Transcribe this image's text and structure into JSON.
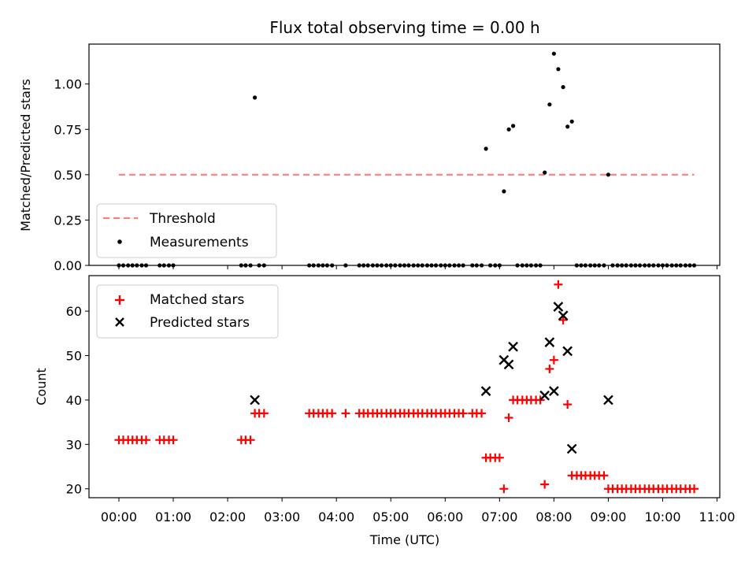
{
  "chart_data": [
    {
      "type": "scatter",
      "title": "Flux total observing time = 0.00 h",
      "xlabel": "",
      "ylabel": "Matched/Predicted stars",
      "xlim": [
        -0.55,
        11.05
      ],
      "ylim": [
        0,
        1.22
      ],
      "yticks": [
        0.0,
        0.25,
        0.5,
        0.75,
        1.0
      ],
      "ytick_labels": [
        "0.00",
        "0.25",
        "0.50",
        "0.75",
        "1.00"
      ],
      "legend_position": "lower-left",
      "series": [
        {
          "name": "Threshold",
          "style": "dashed-line",
          "color": "#ff7f7f",
          "x": [
            0.0,
            10.58
          ],
          "y": [
            0.5,
            0.5
          ]
        },
        {
          "name": "Measurements",
          "style": "dot",
          "color": "#000000",
          "x": [
            0.0,
            0.08,
            0.17,
            0.25,
            0.33,
            0.42,
            0.5,
            0.75,
            0.83,
            0.92,
            1.0,
            2.25,
            2.33,
            2.42,
            2.5,
            2.58,
            2.67,
            3.5,
            3.58,
            3.67,
            3.75,
            3.83,
            3.92,
            4.17,
            4.42,
            4.5,
            4.58,
            4.67,
            4.75,
            4.83,
            4.92,
            5.0,
            5.08,
            5.17,
            5.25,
            5.33,
            5.42,
            5.5,
            5.58,
            5.67,
            5.75,
            5.83,
            5.92,
            6.0,
            6.08,
            6.17,
            6.25,
            6.33,
            6.5,
            6.58,
            6.67,
            6.75,
            6.83,
            6.92,
            7.0,
            7.08,
            7.17,
            7.25,
            7.33,
            7.42,
            7.5,
            7.58,
            7.67,
            7.75,
            7.83,
            7.92,
            8.0,
            8.08,
            8.17,
            8.25,
            8.33,
            8.42,
            8.5,
            8.58,
            8.67,
            8.75,
            8.83,
            8.92,
            9.0,
            9.08,
            9.17,
            9.25,
            9.33,
            9.42,
            9.5,
            9.58,
            9.67,
            9.75,
            9.83,
            9.92,
            10.0,
            10.08,
            10.17,
            10.25,
            10.33,
            10.42,
            10.5,
            10.58
          ],
          "y": [
            0,
            0,
            0,
            0,
            0,
            0,
            0,
            0,
            0,
            0,
            0,
            0,
            0,
            0,
            0.925,
            0,
            0,
            0,
            0,
            0,
            0,
            0,
            0,
            0,
            0,
            0,
            0,
            0,
            0,
            0,
            0,
            0,
            0,
            0,
            0,
            0,
            0,
            0,
            0,
            0,
            0,
            0,
            0,
            0,
            0,
            0,
            0,
            0,
            0,
            0,
            0,
            0.643,
            0,
            0,
            0,
            0.408,
            0.75,
            0.769,
            0,
            0,
            0,
            0,
            0,
            0,
            0.512,
            0.887,
            1.167,
            1.082,
            0.983,
            0.765,
            0.793,
            0,
            0,
            0,
            0,
            0,
            0,
            0,
            0.5,
            0,
            0,
            0,
            0,
            0,
            0,
            0,
            0,
            0,
            0,
            0,
            0,
            0,
            0,
            0,
            0,
            0,
            0,
            0
          ]
        }
      ]
    },
    {
      "type": "scatter",
      "title": "",
      "xlabel": "Time (UTC)",
      "ylabel": "Count",
      "xlim": [
        -0.55,
        11.05
      ],
      "ylim": [
        18,
        68
      ],
      "yticks": [
        20,
        30,
        40,
        50,
        60
      ],
      "ytick_labels": [
        "20",
        "30",
        "40",
        "50",
        "60"
      ],
      "xticks": [
        0,
        1,
        2,
        3,
        4,
        5,
        6,
        7,
        8,
        9,
        10,
        11
      ],
      "xtick_labels": [
        "00:00",
        "01:00",
        "02:00",
        "03:00",
        "04:00",
        "05:00",
        "06:00",
        "07:00",
        "08:00",
        "09:00",
        "10:00",
        "11:00"
      ],
      "legend_position": "top-left",
      "series": [
        {
          "name": "Matched stars",
          "style": "plus",
          "color": "#ff0000",
          "x": [
            0.0,
            0.08,
            0.17,
            0.25,
            0.33,
            0.42,
            0.5,
            0.75,
            0.83,
            0.92,
            1.0,
            2.25,
            2.33,
            2.42,
            2.5,
            2.58,
            2.67,
            3.5,
            3.58,
            3.67,
            3.75,
            3.83,
            3.92,
            4.17,
            4.42,
            4.5,
            4.58,
            4.67,
            4.75,
            4.83,
            4.92,
            5.0,
            5.08,
            5.17,
            5.25,
            5.33,
            5.42,
            5.5,
            5.58,
            5.67,
            5.75,
            5.83,
            5.92,
            6.0,
            6.08,
            6.17,
            6.25,
            6.33,
            6.5,
            6.58,
            6.67,
            6.75,
            6.83,
            6.92,
            7.0,
            7.08,
            7.17,
            7.25,
            7.33,
            7.42,
            7.5,
            7.58,
            7.67,
            7.75,
            7.83,
            7.92,
            8.0,
            8.08,
            8.17,
            8.25,
            8.33,
            8.42,
            8.5,
            8.58,
            8.67,
            8.75,
            8.83,
            8.92,
            9.0,
            9.08,
            9.17,
            9.25,
            9.33,
            9.42,
            9.5,
            9.58,
            9.67,
            9.75,
            9.83,
            9.92,
            10.0,
            10.08,
            10.17,
            10.25,
            10.33,
            10.42,
            10.5,
            10.58
          ],
          "y": [
            31,
            31,
            31,
            31,
            31,
            31,
            31,
            31,
            31,
            31,
            31,
            31,
            31,
            31,
            37,
            37,
            37,
            37,
            37,
            37,
            37,
            37,
            37,
            37,
            37,
            37,
            37,
            37,
            37,
            37,
            37,
            37,
            37,
            37,
            37,
            37,
            37,
            37,
            37,
            37,
            37,
            37,
            37,
            37,
            37,
            37,
            37,
            37,
            37,
            37,
            37,
            27,
            27,
            27,
            27,
            20,
            36,
            40,
            40,
            40,
            40,
            40,
            40,
            40,
            21,
            47,
            49,
            66,
            58,
            39,
            23,
            23,
            23,
            23,
            23,
            23,
            23,
            23,
            20,
            20,
            20,
            20,
            20,
            20,
            20,
            20,
            20,
            20,
            20,
            20,
            20,
            20,
            20,
            20,
            20,
            20,
            20,
            20
          ]
        },
        {
          "name": "Predicted stars",
          "style": "x",
          "color": "#000000",
          "x": [
            2.5,
            6.75,
            7.08,
            7.17,
            7.25,
            7.83,
            7.92,
            8.0,
            8.08,
            8.17,
            8.25,
            8.33,
            9.0
          ],
          "y": [
            40,
            42,
            49,
            48,
            52,
            41,
            53,
            42,
            61,
            59,
            51,
            29,
            40
          ]
        }
      ]
    }
  ]
}
